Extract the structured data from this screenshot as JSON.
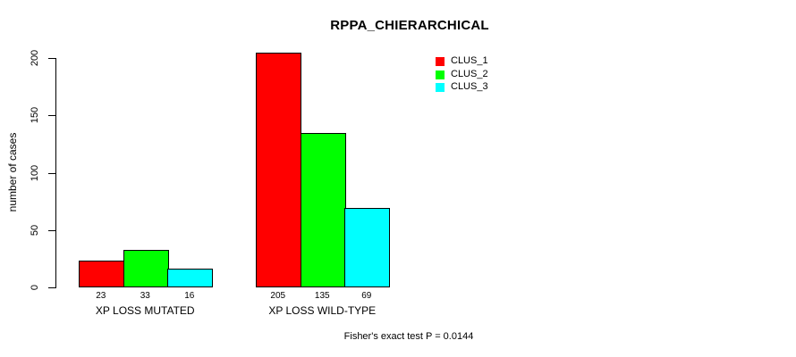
{
  "chart_data": {
    "type": "bar",
    "title": "RPPA_CHIERARCHICAL",
    "xlabel": "",
    "ylabel": "number of cases",
    "categories": [
      "XP LOSS MUTATED",
      "XP LOSS WILD-TYPE"
    ],
    "series": [
      {
        "name": "CLUS_1",
        "color": "#ff0000",
        "values": [
          23,
          205
        ]
      },
      {
        "name": "CLUS_2",
        "color": "#00ff00",
        "values": [
          33,
          135
        ]
      },
      {
        "name": "CLUS_3",
        "color": "#00ffff",
        "values": [
          16,
          69
        ]
      }
    ],
    "bar_value_labels": [
      [
        "23",
        "33",
        "16"
      ],
      [
        "205",
        "135",
        "69"
      ]
    ],
    "yticks": [
      0,
      50,
      100,
      150,
      200
    ],
    "ylim": [
      0,
      200
    ],
    "grid": false,
    "legend_position": "top-right",
    "bar_border_color": "#000000",
    "annotation": "Fisher's exact test P = 0.0144"
  }
}
